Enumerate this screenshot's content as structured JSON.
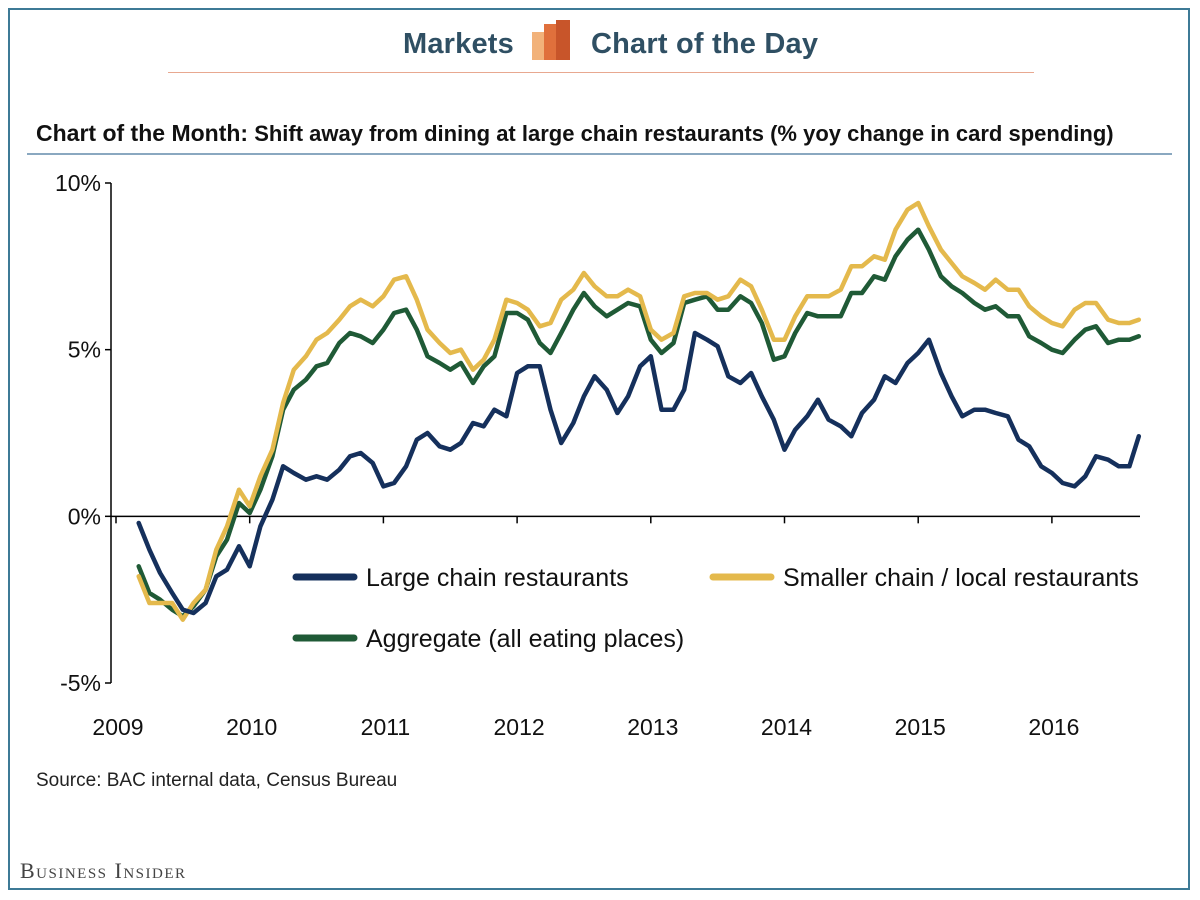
{
  "header": {
    "left_label": "Markets",
    "right_label": "Chart of the Day",
    "logo_icon": "chart-of-the-day-bars-icon"
  },
  "title_lead": "Chart of the Month:",
  "title_rest": " Shift away from dining at large chain restaurants (% yoy change in card spending)",
  "source": "Source:  BAC internal data, Census Bureau",
  "publisher": "Business Insider",
  "colors": {
    "large": "#15305c",
    "smaller": "#e4b94c",
    "aggregate": "#1f5a36",
    "frame": "#3d7a96",
    "brand_text": "#2f4f63"
  },
  "chart_data": {
    "type": "line",
    "title": "Chart of the Month: Shift away from dining at large chain restaurants (% yoy change in card spending)",
    "xlabel": "",
    "ylabel": "",
    "xlim": [
      2009,
      2016.65
    ],
    "ylim": [
      -5,
      10
    ],
    "x_ticks": [
      2009,
      2010,
      2011,
      2012,
      2013,
      2014,
      2015,
      2016
    ],
    "x_tick_labels": [
      "2009",
      "2010",
      "2011",
      "2012",
      "2013",
      "2014",
      "2015",
      "2016"
    ],
    "y_ticks": [
      -5,
      0,
      5,
      10
    ],
    "y_tick_labels": [
      "-5%",
      "0%",
      "5%",
      "10%"
    ],
    "legend": [
      {
        "name": "Large chain restaurants",
        "series": "large"
      },
      {
        "name": "Smaller chain / local restaurants",
        "series": "smaller"
      },
      {
        "name": "Aggregate (all eating places)",
        "series": "aggregate"
      }
    ],
    "legend_position": "inside-lower",
    "series": [
      {
        "key": "aggregate",
        "name": "Aggregate (all eating places)",
        "x": [
          2009.17,
          2009.25,
          2009.33,
          2009.42,
          2009.5,
          2009.58,
          2009.67,
          2009.75,
          2009.83,
          2009.92,
          2010.0,
          2010.08,
          2010.17,
          2010.25,
          2010.33,
          2010.42,
          2010.5,
          2010.58,
          2010.67,
          2010.75,
          2010.83,
          2010.92,
          2011.0,
          2011.08,
          2011.17,
          2011.25,
          2011.33,
          2011.42,
          2011.5,
          2011.58,
          2011.67,
          2011.75,
          2011.83,
          2011.92,
          2012.0,
          2012.08,
          2012.17,
          2012.25,
          2012.33,
          2012.42,
          2012.5,
          2012.58,
          2012.67,
          2012.75,
          2012.83,
          2012.92,
          2013.0,
          2013.08,
          2013.17,
          2013.25,
          2013.33,
          2013.42,
          2013.5,
          2013.58,
          2013.67,
          2013.75,
          2013.83,
          2013.92,
          2014.0,
          2014.08,
          2014.17,
          2014.25,
          2014.33,
          2014.42,
          2014.5,
          2014.58,
          2014.67,
          2014.75,
          2014.83,
          2014.92,
          2015.0,
          2015.08,
          2015.17,
          2015.25,
          2015.33,
          2015.42,
          2015.5,
          2015.58,
          2015.67,
          2015.75,
          2015.83,
          2015.92,
          2016.0,
          2016.08,
          2016.17,
          2016.25,
          2016.33,
          2016.42,
          2016.5,
          2016.58,
          2016.65
        ],
        "values": [
          -1.5,
          -2.3,
          -2.5,
          -2.8,
          -3.0,
          -2.7,
          -2.2,
          -1.2,
          -0.7,
          0.4,
          0.1,
          0.8,
          1.8,
          3.2,
          3.8,
          4.1,
          4.5,
          4.6,
          5.2,
          5.5,
          5.4,
          5.2,
          5.6,
          6.1,
          6.2,
          5.6,
          4.8,
          4.6,
          4.4,
          4.6,
          4.0,
          4.5,
          4.8,
          6.1,
          6.1,
          5.9,
          5.2,
          4.9,
          5.5,
          6.2,
          6.7,
          6.3,
          6.0,
          6.2,
          6.4,
          6.3,
          5.3,
          4.9,
          5.2,
          6.4,
          6.5,
          6.6,
          6.2,
          6.2,
          6.6,
          6.4,
          5.8,
          4.7,
          4.8,
          5.5,
          6.1,
          6.0,
          6.0,
          6.0,
          6.7,
          6.7,
          7.2,
          7.1,
          7.8,
          8.3,
          8.6,
          8.0,
          7.2,
          6.9,
          6.7,
          6.4,
          6.2,
          6.3,
          6.0,
          6.0,
          5.4,
          5.2,
          5.0,
          4.9,
          5.3,
          5.6,
          5.7,
          5.2,
          5.3,
          5.3,
          5.4
        ]
      },
      {
        "key": "smaller",
        "name": "Smaller chain / local restaurants",
        "x": [
          2009.17,
          2009.25,
          2009.33,
          2009.42,
          2009.5,
          2009.58,
          2009.67,
          2009.75,
          2009.83,
          2009.92,
          2010.0,
          2010.08,
          2010.17,
          2010.25,
          2010.33,
          2010.42,
          2010.5,
          2010.58,
          2010.67,
          2010.75,
          2010.83,
          2010.92,
          2011.0,
          2011.08,
          2011.17,
          2011.25,
          2011.33,
          2011.42,
          2011.5,
          2011.58,
          2011.67,
          2011.75,
          2011.83,
          2011.92,
          2012.0,
          2012.08,
          2012.17,
          2012.25,
          2012.33,
          2012.42,
          2012.5,
          2012.58,
          2012.67,
          2012.75,
          2012.83,
          2012.92,
          2013.0,
          2013.08,
          2013.17,
          2013.25,
          2013.33,
          2013.42,
          2013.5,
          2013.58,
          2013.67,
          2013.75,
          2013.83,
          2013.92,
          2014.0,
          2014.08,
          2014.17,
          2014.25,
          2014.33,
          2014.42,
          2014.5,
          2014.58,
          2014.67,
          2014.75,
          2014.83,
          2014.92,
          2015.0,
          2015.08,
          2015.17,
          2015.25,
          2015.33,
          2015.42,
          2015.5,
          2015.58,
          2015.67,
          2015.75,
          2015.83,
          2015.92,
          2016.0,
          2016.08,
          2016.17,
          2016.25,
          2016.33,
          2016.42,
          2016.5,
          2016.58,
          2016.65
        ],
        "values": [
          -1.8,
          -2.6,
          -2.6,
          -2.6,
          -3.1,
          -2.6,
          -2.2,
          -1.0,
          -0.3,
          0.8,
          0.3,
          1.2,
          2.0,
          3.4,
          4.4,
          4.8,
          5.3,
          5.5,
          5.9,
          6.3,
          6.5,
          6.3,
          6.6,
          7.1,
          7.2,
          6.5,
          5.6,
          5.2,
          4.9,
          5.0,
          4.4,
          4.7,
          5.3,
          6.5,
          6.4,
          6.2,
          5.7,
          5.8,
          6.5,
          6.8,
          7.3,
          6.9,
          6.6,
          6.6,
          6.8,
          6.6,
          5.6,
          5.3,
          5.5,
          6.6,
          6.7,
          6.7,
          6.5,
          6.6,
          7.1,
          6.9,
          6.2,
          5.3,
          5.3,
          6.0,
          6.6,
          6.6,
          6.6,
          6.8,
          7.5,
          7.5,
          7.8,
          7.7,
          8.6,
          9.2,
          9.4,
          8.7,
          8.0,
          7.6,
          7.2,
          7.0,
          6.8,
          7.1,
          6.8,
          6.8,
          6.3,
          6.0,
          5.8,
          5.7,
          6.2,
          6.4,
          6.4,
          5.9,
          5.8,
          5.8,
          5.9
        ]
      },
      {
        "key": "large",
        "name": "Large chain restaurants",
        "x": [
          2009.17,
          2009.25,
          2009.33,
          2009.42,
          2009.5,
          2009.58,
          2009.67,
          2009.75,
          2009.83,
          2009.92,
          2010.0,
          2010.08,
          2010.17,
          2010.25,
          2010.33,
          2010.42,
          2010.5,
          2010.58,
          2010.67,
          2010.75,
          2010.83,
          2010.92,
          2011.0,
          2011.08,
          2011.17,
          2011.25,
          2011.33,
          2011.42,
          2011.5,
          2011.58,
          2011.67,
          2011.75,
          2011.83,
          2011.92,
          2012.0,
          2012.08,
          2012.17,
          2012.25,
          2012.33,
          2012.42,
          2012.5,
          2012.58,
          2012.67,
          2012.75,
          2012.83,
          2012.92,
          2013.0,
          2013.08,
          2013.17,
          2013.25,
          2013.33,
          2013.42,
          2013.5,
          2013.58,
          2013.67,
          2013.75,
          2013.83,
          2013.92,
          2014.0,
          2014.08,
          2014.17,
          2014.25,
          2014.33,
          2014.42,
          2014.5,
          2014.58,
          2014.67,
          2014.75,
          2014.83,
          2014.92,
          2015.0,
          2015.08,
          2015.17,
          2015.25,
          2015.33,
          2015.42,
          2015.5,
          2015.58,
          2015.67,
          2015.75,
          2015.83,
          2015.92,
          2016.0,
          2016.08,
          2016.17,
          2016.25,
          2016.33,
          2016.42,
          2016.5,
          2016.58,
          2016.65
        ],
        "values": [
          -0.2,
          -1.0,
          -1.7,
          -2.3,
          -2.8,
          -2.9,
          -2.6,
          -1.8,
          -1.6,
          -0.9,
          -1.5,
          -0.3,
          0.5,
          1.5,
          1.3,
          1.1,
          1.2,
          1.1,
          1.4,
          1.8,
          1.9,
          1.6,
          0.9,
          1.0,
          1.5,
          2.3,
          2.5,
          2.1,
          2.0,
          2.2,
          2.8,
          2.7,
          3.2,
          3.0,
          4.3,
          4.5,
          4.5,
          3.2,
          2.2,
          2.8,
          3.6,
          4.2,
          3.8,
          3.1,
          3.6,
          4.5,
          4.8,
          3.2,
          3.2,
          3.8,
          5.5,
          5.3,
          5.1,
          4.2,
          4.0,
          4.3,
          3.6,
          2.9,
          2.0,
          2.6,
          3.0,
          3.5,
          2.9,
          2.7,
          2.4,
          3.1,
          3.5,
          4.2,
          4.0,
          4.6,
          4.9,
          5.3,
          4.3,
          3.6,
          3.0,
          3.2,
          3.2,
          3.1,
          3.0,
          2.3,
          2.1,
          1.5,
          1.3,
          1.0,
          0.9,
          1.2,
          1.8,
          1.7,
          1.5,
          1.5,
          2.4
        ]
      }
    ]
  }
}
